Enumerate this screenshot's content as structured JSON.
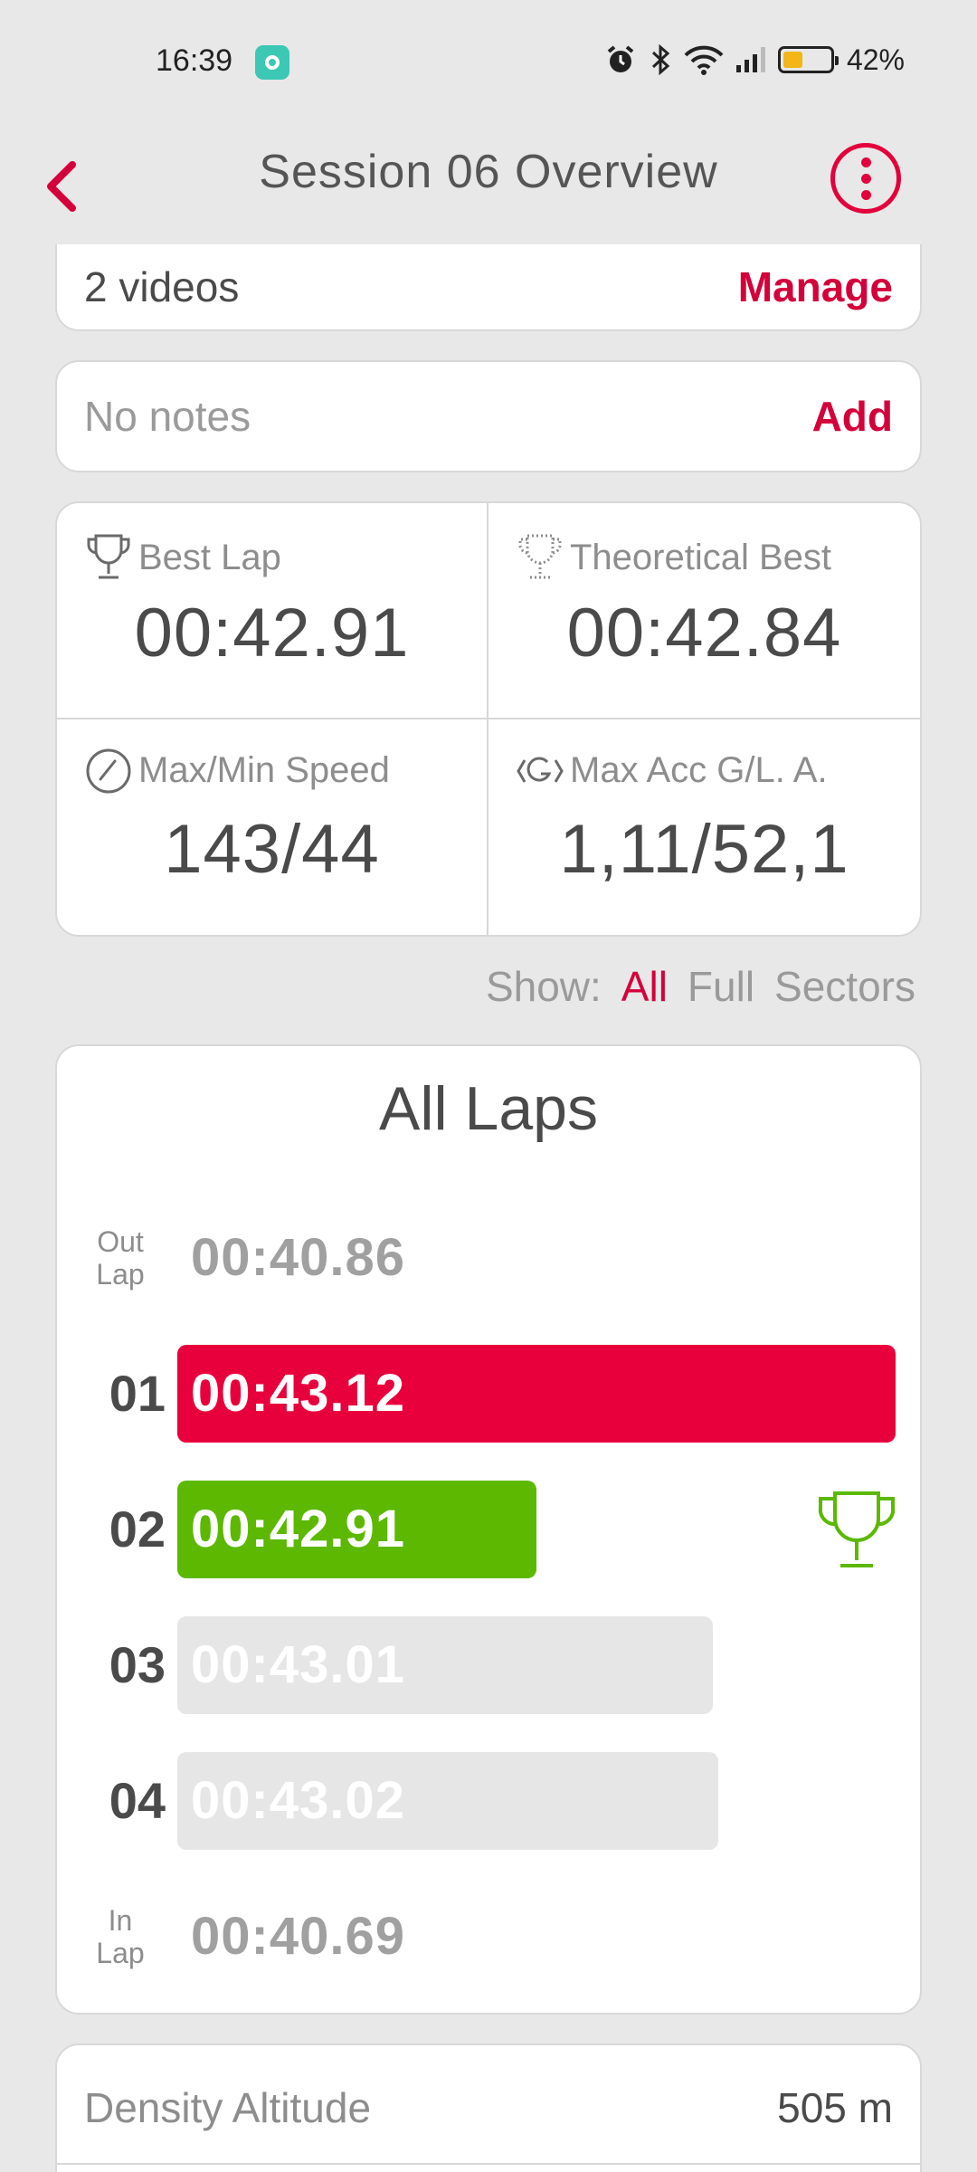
{
  "status_bar": {
    "time": "16:39",
    "battery": "42%",
    "battery_level": 0.42,
    "icons": [
      "alarm-icon",
      "bluetooth-icon",
      "wifi-icon",
      "signal-icon",
      "battery-icon"
    ]
  },
  "header": {
    "title": "Session 06 Overview"
  },
  "videos": {
    "label": "2 videos",
    "action": "Manage"
  },
  "notes": {
    "label": "No notes",
    "action": "Add"
  },
  "stats": {
    "best_lap": {
      "label": "Best Lap",
      "value": "00:42.91",
      "icon": "trophy-icon"
    },
    "theoretical_best": {
      "label": "Theoretical Best",
      "value": "00:42.84",
      "icon": "dotted-trophy-icon"
    },
    "speed": {
      "label": "Max/Min Speed",
      "value": "143/44",
      "icon": "speedometer-icon"
    },
    "acceleration": {
      "label": "Max Acc G/L. A.",
      "value": "1,11/52,1",
      "icon": "g-force-icon"
    }
  },
  "filter": {
    "label": "Show:",
    "options": [
      "All",
      "Full",
      "Sectors"
    ],
    "selected": "All"
  },
  "laps": {
    "title": "All Laps",
    "out_lap": {
      "label_line1": "Out",
      "label_line2": "Lap",
      "time": "00:40.86"
    },
    "in_lap": {
      "label_line1": "In",
      "label_line2": "Lap",
      "time": "00:40.69"
    },
    "items": [
      {
        "number": "01",
        "time": "00:43.12",
        "color": "#e8003c",
        "relative_length": 1.0
      },
      {
        "number": "02",
        "time": "00:42.91",
        "color": "#5cb800",
        "relative_length": 0.5,
        "best": true
      },
      {
        "number": "03",
        "time": "00:43.01",
        "color": "#e6e6e6",
        "relative_length": 0.745
      },
      {
        "number": "04",
        "time": "00:43.02",
        "color": "#e6e6e6",
        "relative_length": 0.753
      }
    ]
  },
  "density_altitude": {
    "label": "Density Altitude",
    "value": "505 m"
  },
  "colors": {
    "accent": "#d4003a",
    "best": "#5cb800",
    "background": "#e8e8e8"
  }
}
